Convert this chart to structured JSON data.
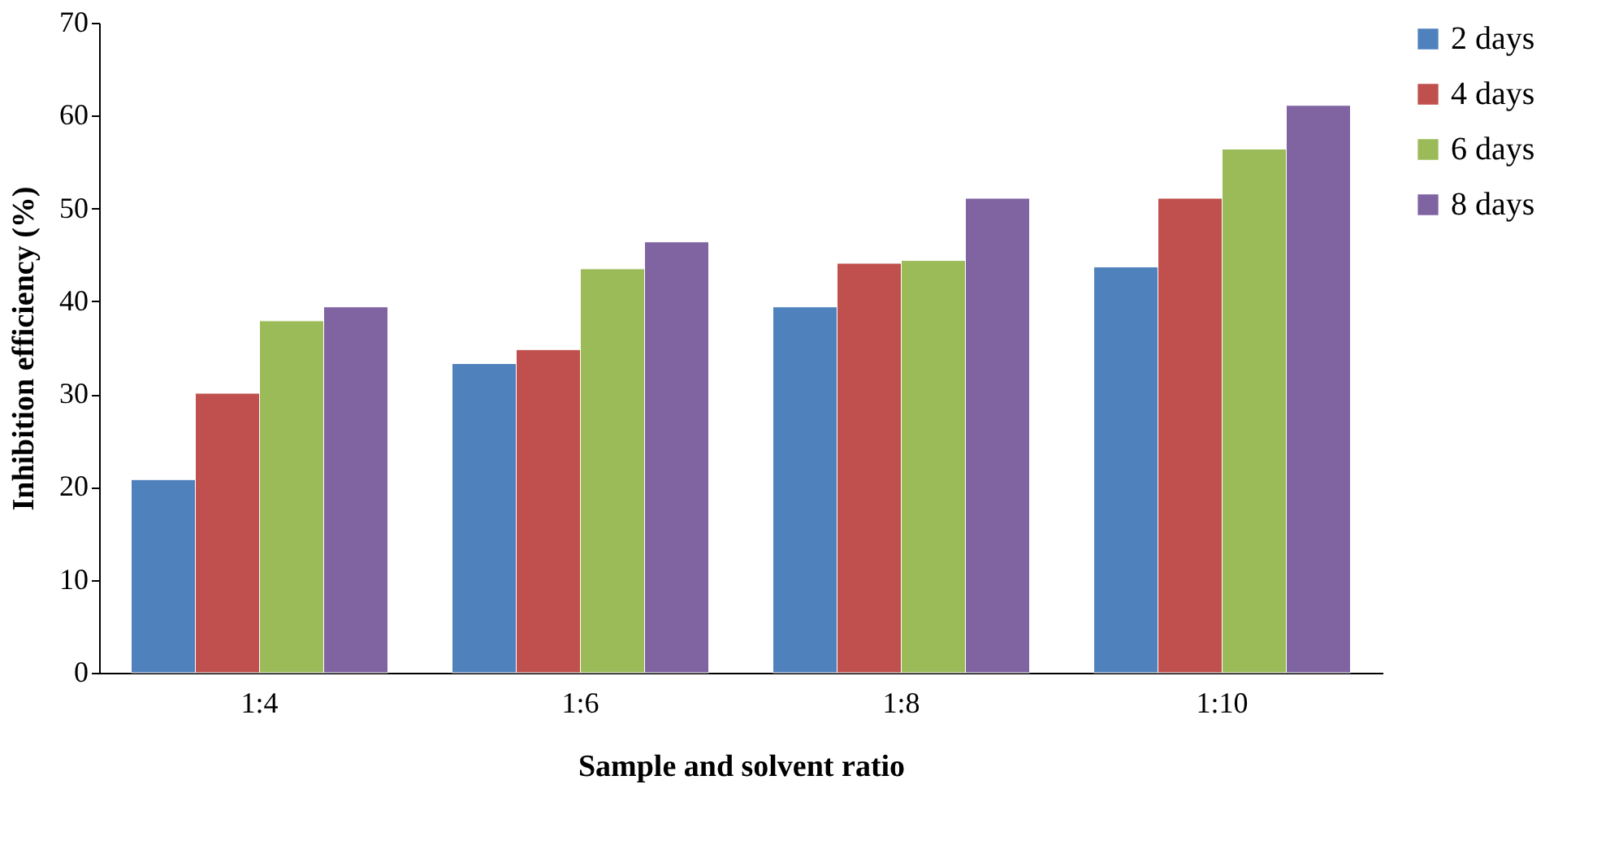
{
  "chart_data": {
    "type": "bar",
    "xlabel": "Sample and solvent ratio",
    "ylabel": "Inhibition efficiency (%)",
    "categories": [
      "1:4",
      "1:6",
      "1:8",
      "1:10"
    ],
    "series": [
      {
        "name": "2 days",
        "color": "#4f81bd",
        "values": [
          20.8,
          33.3,
          39.4,
          43.7
        ]
      },
      {
        "name": "4 days",
        "color": "#c0504d",
        "values": [
          30.1,
          34.8,
          44.1,
          51.1
        ]
      },
      {
        "name": "6 days",
        "color": "#9bbb59",
        "values": [
          37.9,
          43.5,
          44.4,
          56.4
        ]
      },
      {
        "name": "8 days",
        "color": "#8064a2",
        "values": [
          39.4,
          46.4,
          51.1,
          61.1
        ]
      }
    ],
    "ylim": [
      0,
      70
    ],
    "yticks": [
      0,
      10,
      20,
      30,
      40,
      50,
      60,
      70
    ],
    "grid": false,
    "legend": "top right"
  }
}
